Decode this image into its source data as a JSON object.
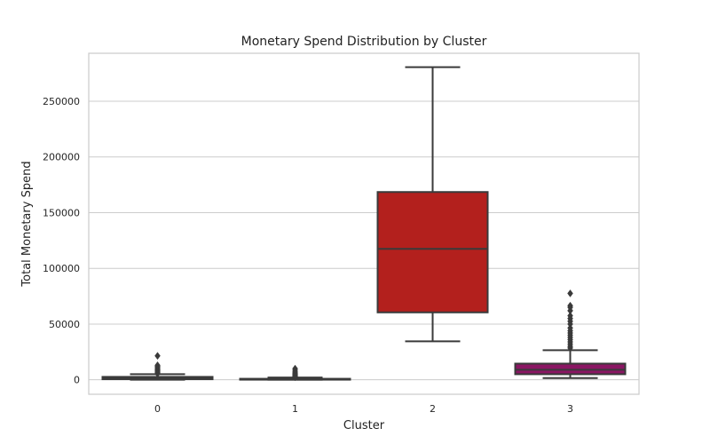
{
  "chart_data": {
    "type": "box",
    "title": "Monetary Spend Distribution by Cluster",
    "xlabel": "Cluster",
    "ylabel": "Total Monetary Spend",
    "categories": [
      "0",
      "1",
      "2",
      "3"
    ],
    "ylim": [
      -13000,
      293000
    ],
    "yticks": [
      0,
      50000,
      100000,
      150000,
      200000,
      250000
    ],
    "ytick_labels": [
      "0",
      "50000",
      "100000",
      "150000",
      "200000",
      "250000"
    ],
    "grid": "horizontal",
    "boxes": [
      {
        "category": "0",
        "color": "#2f3a7a",
        "whisker_low": 0,
        "q1": 500,
        "median": 1300,
        "q3": 2600,
        "whisker_high": 5000,
        "outliers": [
          5500,
          6200,
          7000,
          8000,
          9000,
          10000,
          11000,
          12000,
          13000,
          21500
        ]
      },
      {
        "category": "1",
        "color": "#5a5ea6",
        "whisker_low": 0,
        "q1": 150,
        "median": 400,
        "q3": 900,
        "whisker_high": 2000,
        "outliers": [
          2300,
          2800,
          3300,
          4000,
          5000,
          6000,
          7000,
          8500,
          10000
        ]
      },
      {
        "category": "2",
        "color": "#b3201d",
        "whisker_low": 34500,
        "q1": 60500,
        "median": 117500,
        "q3": 168500,
        "whisker_high": 280500,
        "outliers": []
      },
      {
        "category": "3",
        "color": "#8a1663",
        "whisker_low": 1500,
        "q1": 5000,
        "median": 9000,
        "q3": 14500,
        "whisker_high": 26500,
        "outliers": [
          28500,
          30000,
          32000,
          34000,
          36000,
          38000,
          40000,
          42000,
          44000,
          46500,
          50000,
          52500,
          55000,
          57500,
          62000,
          65000,
          66500,
          77500
        ]
      }
    ]
  }
}
